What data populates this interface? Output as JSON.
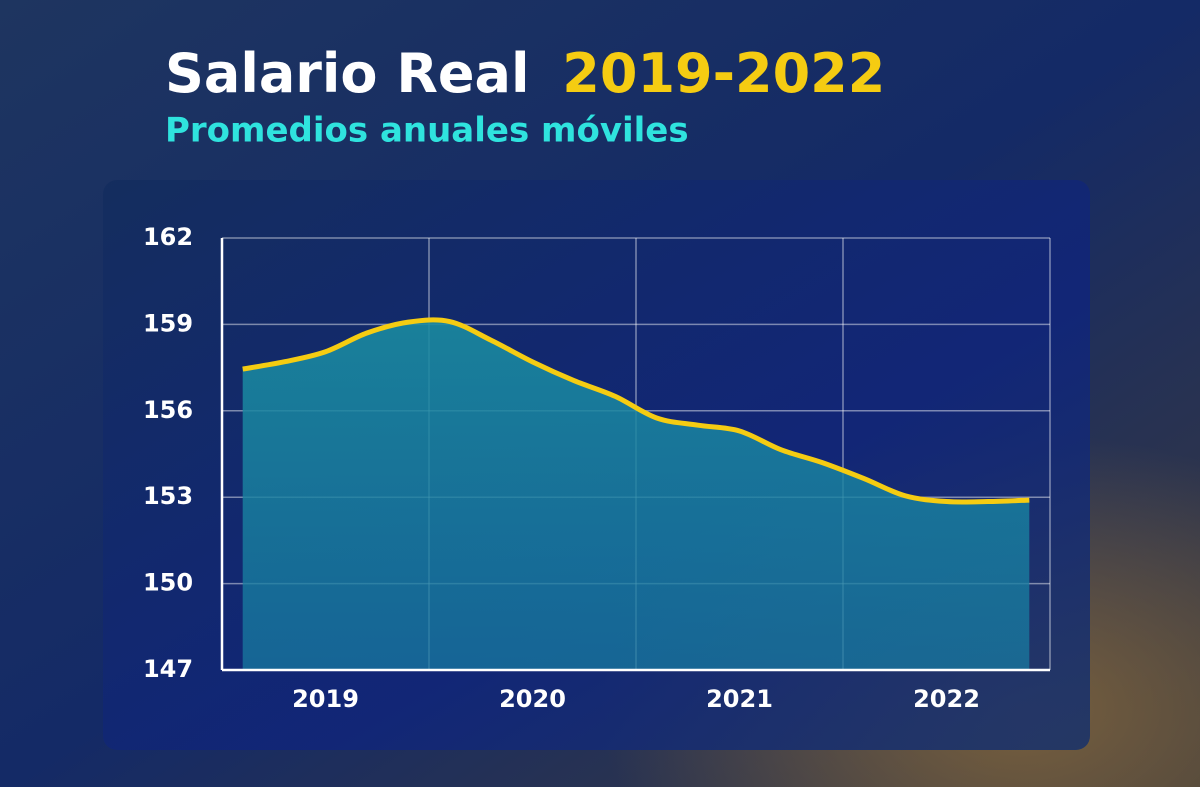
{
  "chart_data": {
    "type": "line",
    "title": "Salario Real",
    "title_years": "2019-2022",
    "subtitle": "Promedios anuales móviles",
    "categories": [
      null,
      null,
      "2019",
      null,
      null,
      null,
      null,
      "2020",
      null,
      null,
      null,
      null,
      "2021",
      null,
      null,
      null,
      null,
      "2022",
      null,
      null
    ],
    "series": [
      {
        "name": "Salario Real",
        "color": "#f5cc12",
        "values": [
          157.45,
          157.7,
          158.05,
          158.7,
          159.08,
          159.1,
          158.45,
          157.7,
          157.05,
          156.5,
          155.75,
          155.5,
          155.3,
          154.65,
          154.2,
          153.65,
          153.05,
          152.85,
          152.85,
          152.9
        ]
      }
    ],
    "ylim": [
      147,
      162
    ],
    "yticks": [
      147,
      150,
      153,
      156,
      159,
      162
    ],
    "grid": true
  }
}
